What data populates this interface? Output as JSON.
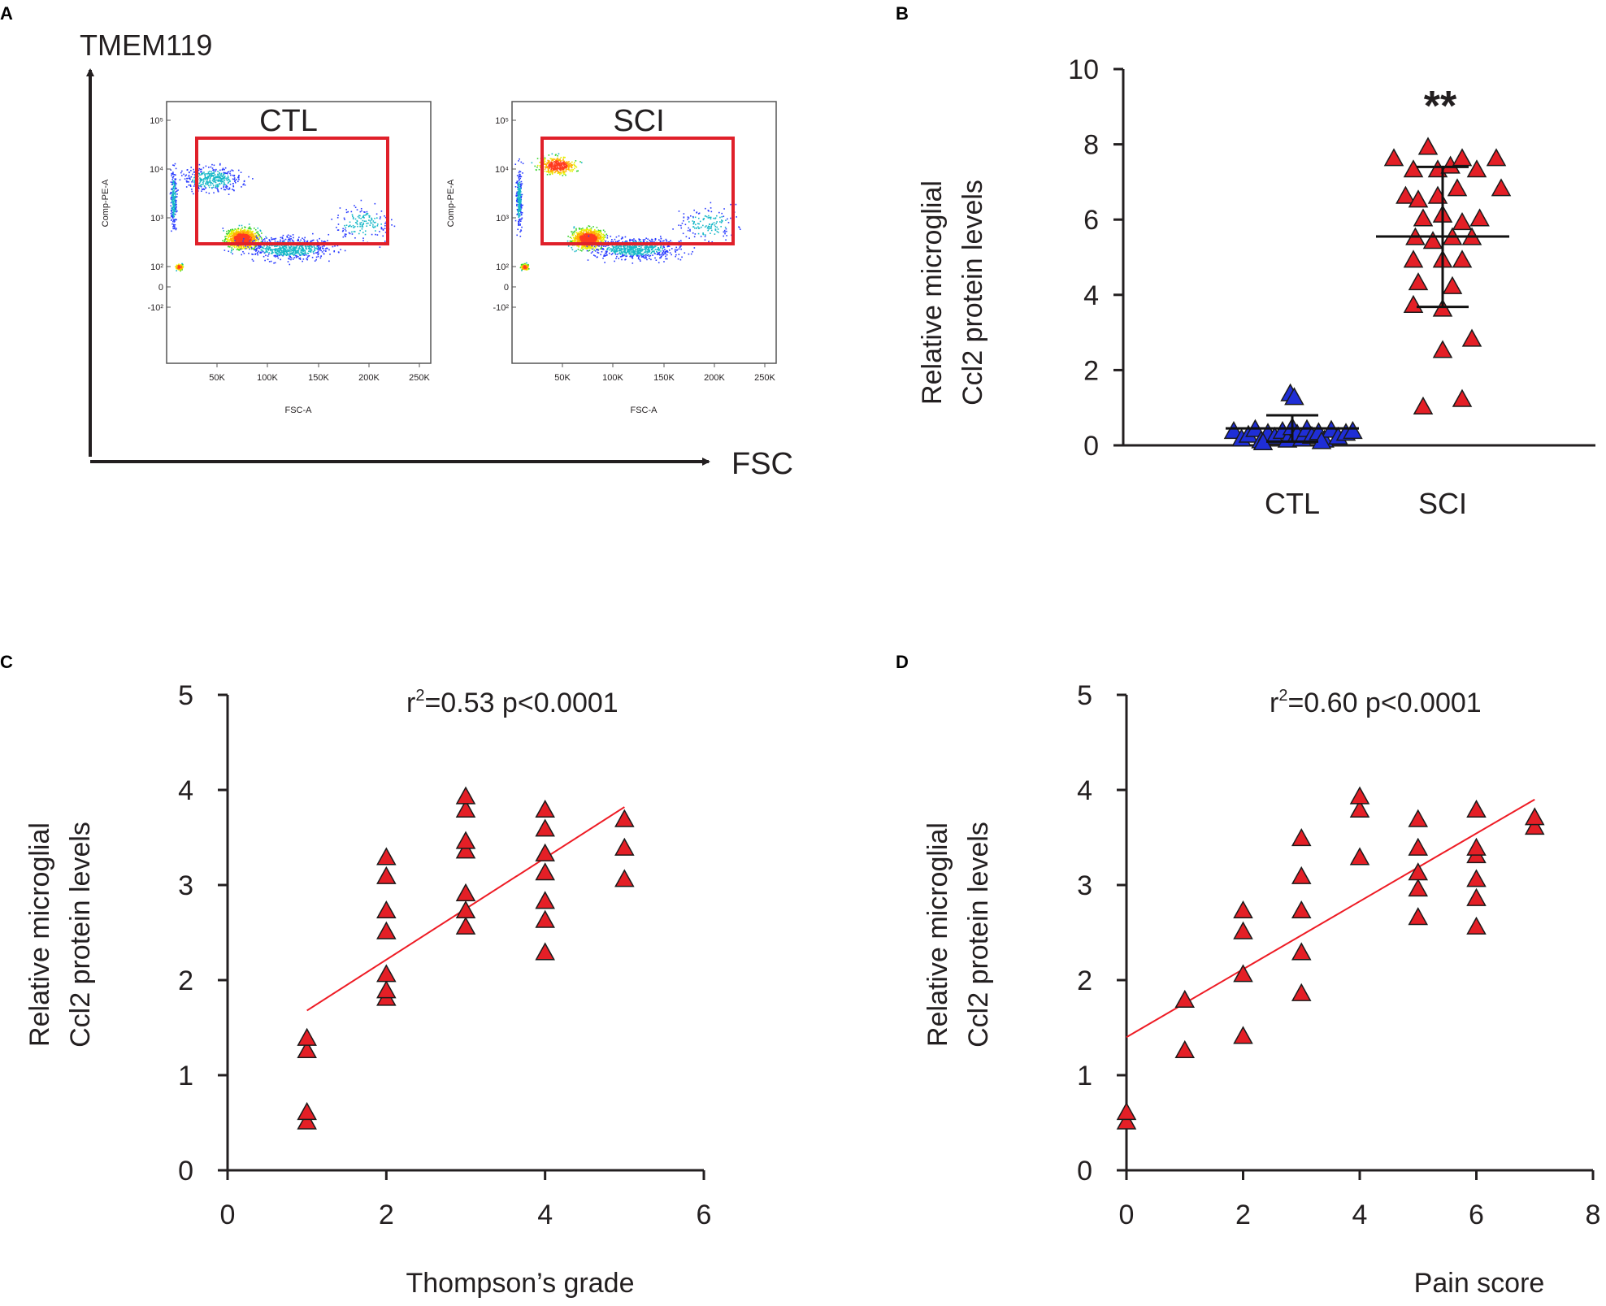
{
  "figure": {
    "panel_letters": {
      "a": "A",
      "b": "B",
      "c": "C",
      "d": "D"
    }
  },
  "colors": {
    "marker_red": "#e41f26",
    "marker_blue": "#1f2ed6",
    "fit_line": "#ee1c25",
    "gate": "#e0202a",
    "axis": "#231f20"
  },
  "chart_data": [
    {
      "id": "A",
      "type": "scatter",
      "kind": "flow-cytometry",
      "y_axis_label": "TMEM119",
      "x_axis_label": "FSC",
      "plots": [
        {
          "name": "CTL",
          "gate_label": "CTL"
        },
        {
          "name": "SCI",
          "gate_label": "SCI"
        }
      ],
      "inner_ylabel": "Comp-PE-A",
      "inner_xlabel": "FSC-A",
      "y_ticks": [
        "10⁵",
        "10⁴",
        "10³",
        "10²",
        "0",
        "-10²"
      ],
      "x_ticks": [
        "50K",
        "100K",
        "150K",
        "200K",
        "250K"
      ]
    },
    {
      "id": "B",
      "type": "scatter",
      "ylabel_line1": "Relative microglial",
      "ylabel_line2": "Ccl2 protein levels",
      "ylim": [
        0,
        10
      ],
      "yticks": [
        0,
        2,
        4,
        6,
        8,
        10
      ],
      "categories": [
        "CTL",
        "SCI"
      ],
      "significance": "**",
      "series": [
        {
          "name": "CTL",
          "color": "blue",
          "points": [
            [
              -0.6,
              0.35
            ],
            [
              -0.52,
              0.15
            ],
            [
              -0.45,
              0.25
            ],
            [
              -0.38,
              0.4
            ],
            [
              -0.32,
              0.1
            ],
            [
              -0.25,
              0.3
            ],
            [
              -0.18,
              0.2
            ],
            [
              -0.1,
              0.35
            ],
            [
              -0.05,
              0.12
            ],
            [
              0.0,
              0.45
            ],
            [
              0.05,
              0.28
            ],
            [
              0.1,
              0.15
            ],
            [
              0.15,
              0.4
            ],
            [
              0.2,
              0.22
            ],
            [
              0.27,
              0.32
            ],
            [
              0.33,
              0.12
            ],
            [
              0.4,
              0.38
            ],
            [
              0.47,
              0.2
            ],
            [
              0.55,
              0.3
            ],
            [
              0.62,
              0.35
            ],
            [
              -0.02,
              1.35
            ],
            [
              0.02,
              1.25
            ],
            [
              -0.3,
              0.05
            ],
            [
              0.3,
              0.08
            ]
          ],
          "mean": 0.45,
          "sd_low": 0.1,
          "sd_high": 0.8
        },
        {
          "name": "SCI",
          "color": "red",
          "points": [
            [
              -0.5,
              7.6
            ],
            [
              -0.38,
              6.6
            ],
            [
              -0.3,
              7.3
            ],
            [
              -0.15,
              7.9
            ],
            [
              -0.05,
              7.3
            ],
            [
              0.08,
              7.4
            ],
            [
              0.2,
              7.6
            ],
            [
              0.35,
              7.3
            ],
            [
              0.55,
              7.6
            ],
            [
              0.6,
              6.8
            ],
            [
              -0.05,
              6.6
            ],
            [
              0.15,
              6.8
            ],
            [
              -0.25,
              6.5
            ],
            [
              -0.2,
              6.0
            ],
            [
              0.0,
              6.1
            ],
            [
              0.2,
              5.9
            ],
            [
              0.38,
              6.0
            ],
            [
              -0.28,
              5.5
            ],
            [
              -0.1,
              5.4
            ],
            [
              0.1,
              5.5
            ],
            [
              0.3,
              5.5
            ],
            [
              -0.3,
              4.9
            ],
            [
              0.0,
              4.9
            ],
            [
              0.2,
              4.9
            ],
            [
              -0.25,
              4.3
            ],
            [
              0.1,
              4.2
            ],
            [
              -0.3,
              3.7
            ],
            [
              0.0,
              3.6
            ],
            [
              0.3,
              2.8
            ],
            [
              0.0,
              2.5
            ],
            [
              0.2,
              1.2
            ],
            [
              -0.2,
              1.0
            ]
          ],
          "mean": 5.55,
          "sd_low": 3.68,
          "sd_high": 7.4
        }
      ]
    },
    {
      "id": "C",
      "type": "scatter",
      "xlabel": "Thompson’s grade",
      "ylabel_line1": "Relative microglial",
      "ylabel_line2": "Ccl2 protein levels",
      "annotation": {
        "r": "r",
        "sup": "2",
        "rest": "=0.53 p<0.0001"
      },
      "xlim": [
        0,
        6
      ],
      "ylim": [
        0,
        5
      ],
      "xticks": [
        0,
        2,
        4,
        6
      ],
      "yticks": [
        0,
        1,
        2,
        3,
        4,
        5
      ],
      "points": [
        [
          1,
          0.5
        ],
        [
          1,
          0.6
        ],
        [
          1,
          1.25
        ],
        [
          1,
          1.38
        ],
        [
          2,
          1.8
        ],
        [
          2,
          1.88
        ],
        [
          2,
          2.05
        ],
        [
          2,
          2.5
        ],
        [
          2,
          2.72
        ],
        [
          2,
          3.08
        ],
        [
          2,
          3.28
        ],
        [
          3,
          2.55
        ],
        [
          3,
          2.72
        ],
        [
          3,
          2.9
        ],
        [
          3,
          3.35
        ],
        [
          3,
          3.45
        ],
        [
          3,
          3.78
        ],
        [
          3,
          3.92
        ],
        [
          4,
          2.28
        ],
        [
          4,
          2.62
        ],
        [
          4,
          2.82
        ],
        [
          4,
          3.12
        ],
        [
          4,
          3.32
        ],
        [
          4,
          3.58
        ],
        [
          4,
          3.78
        ],
        [
          5,
          3.05
        ],
        [
          5,
          3.38
        ],
        [
          5,
          3.68
        ]
      ],
      "fit": {
        "x": [
          1,
          5
        ],
        "y": [
          1.68,
          3.82
        ]
      }
    },
    {
      "id": "D",
      "type": "scatter",
      "xlabel": "Pain score",
      "ylabel_line1": "Relative microglial",
      "ylabel_line2": "Ccl2 protein levels",
      "annotation": {
        "r": "r",
        "sup": "2",
        "rest": "=0.60 p<0.0001"
      },
      "xlim": [
        0,
        8
      ],
      "ylim": [
        0,
        5
      ],
      "xticks": [
        0,
        2,
        4,
        6,
        8
      ],
      "yticks": [
        0,
        1,
        2,
        3,
        4,
        5
      ],
      "points": [
        [
          0,
          0.5
        ],
        [
          0,
          0.6
        ],
        [
          1,
          1.25
        ],
        [
          1,
          1.78
        ],
        [
          2,
          1.4
        ],
        [
          2,
          2.05
        ],
        [
          2,
          2.5
        ],
        [
          2,
          2.72
        ],
        [
          3,
          1.85
        ],
        [
          3,
          2.28
        ],
        [
          3,
          2.72
        ],
        [
          3,
          3.08
        ],
        [
          3,
          3.48
        ],
        [
          4,
          3.28
        ],
        [
          4,
          3.78
        ],
        [
          4,
          3.92
        ],
        [
          5,
          2.65
        ],
        [
          5,
          2.95
        ],
        [
          5,
          3.12
        ],
        [
          5,
          3.38
        ],
        [
          5,
          3.68
        ],
        [
          6,
          2.55
        ],
        [
          6,
          2.85
        ],
        [
          6,
          3.05
        ],
        [
          6,
          3.3
        ],
        [
          6,
          3.38
        ],
        [
          6,
          3.78
        ],
        [
          7,
          3.6
        ],
        [
          7,
          3.7
        ]
      ],
      "fit": {
        "x": [
          0,
          7
        ],
        "y": [
          1.4,
          3.9
        ]
      }
    }
  ]
}
